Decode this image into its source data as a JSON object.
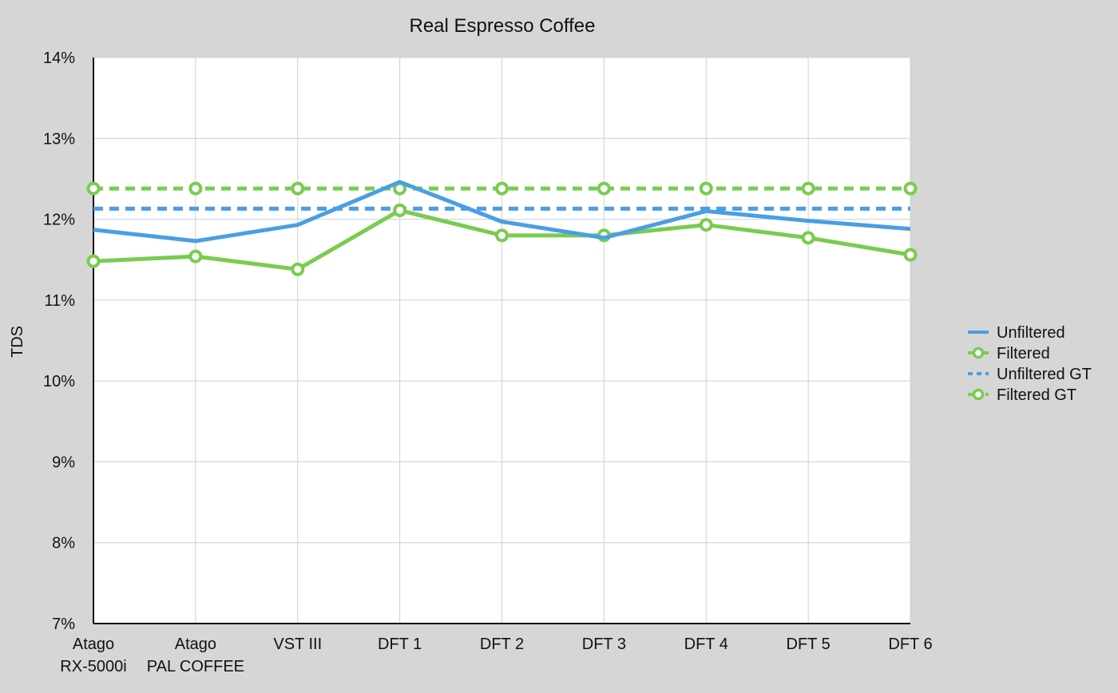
{
  "chart_data": {
    "type": "line",
    "title": "Real Espresso Coffee",
    "xlabel": "",
    "ylabel": "TDS",
    "ylim": [
      7,
      14
    ],
    "yticks": [
      7,
      8,
      9,
      10,
      11,
      12,
      13,
      14
    ],
    "ytick_labels": [
      "7%",
      "8%",
      "9%",
      "10%",
      "11%",
      "12%",
      "13%",
      "14%"
    ],
    "categories": [
      "Atago RX-5000i",
      "Atago PAL COFFEE",
      "VST III",
      "DFT 1",
      "DFT 2",
      "DFT 3",
      "DFT 4",
      "DFT 5",
      "DFT 6"
    ],
    "category_label_lines": [
      [
        "Atago",
        "RX-5000i"
      ],
      [
        "Atago",
        "PAL COFFEE"
      ],
      [
        "VST III"
      ],
      [
        "DFT 1"
      ],
      [
        "DFT 2"
      ],
      [
        "DFT 3"
      ],
      [
        "DFT 4"
      ],
      [
        "DFT 5"
      ],
      [
        "DFT 6"
      ]
    ],
    "grid": true,
    "legend_position": "right",
    "series": [
      {
        "name": "Unfiltered",
        "values": [
          11.87,
          11.73,
          11.93,
          12.46,
          11.97,
          11.77,
          12.1,
          11.98,
          11.88
        ],
        "color": "#4a9ee3",
        "style": "solid",
        "markers": false
      },
      {
        "name": "Filtered",
        "values": [
          11.48,
          11.54,
          11.38,
          12.11,
          11.8,
          11.8,
          11.93,
          11.77,
          11.56
        ],
        "color": "#78cc50",
        "style": "solid",
        "markers": true
      },
      {
        "name": "Unfiltered GT",
        "values": [
          12.13,
          12.13,
          12.13,
          12.13,
          12.13,
          12.13,
          12.13,
          12.13,
          12.13
        ],
        "color": "#4a9ee3",
        "style": "dashed",
        "markers": false
      },
      {
        "name": "Filtered GT",
        "values": [
          12.38,
          12.38,
          12.38,
          12.38,
          12.38,
          12.38,
          12.38,
          12.38,
          12.38
        ],
        "color": "#78cc50",
        "style": "dashed",
        "markers": true
      }
    ]
  }
}
